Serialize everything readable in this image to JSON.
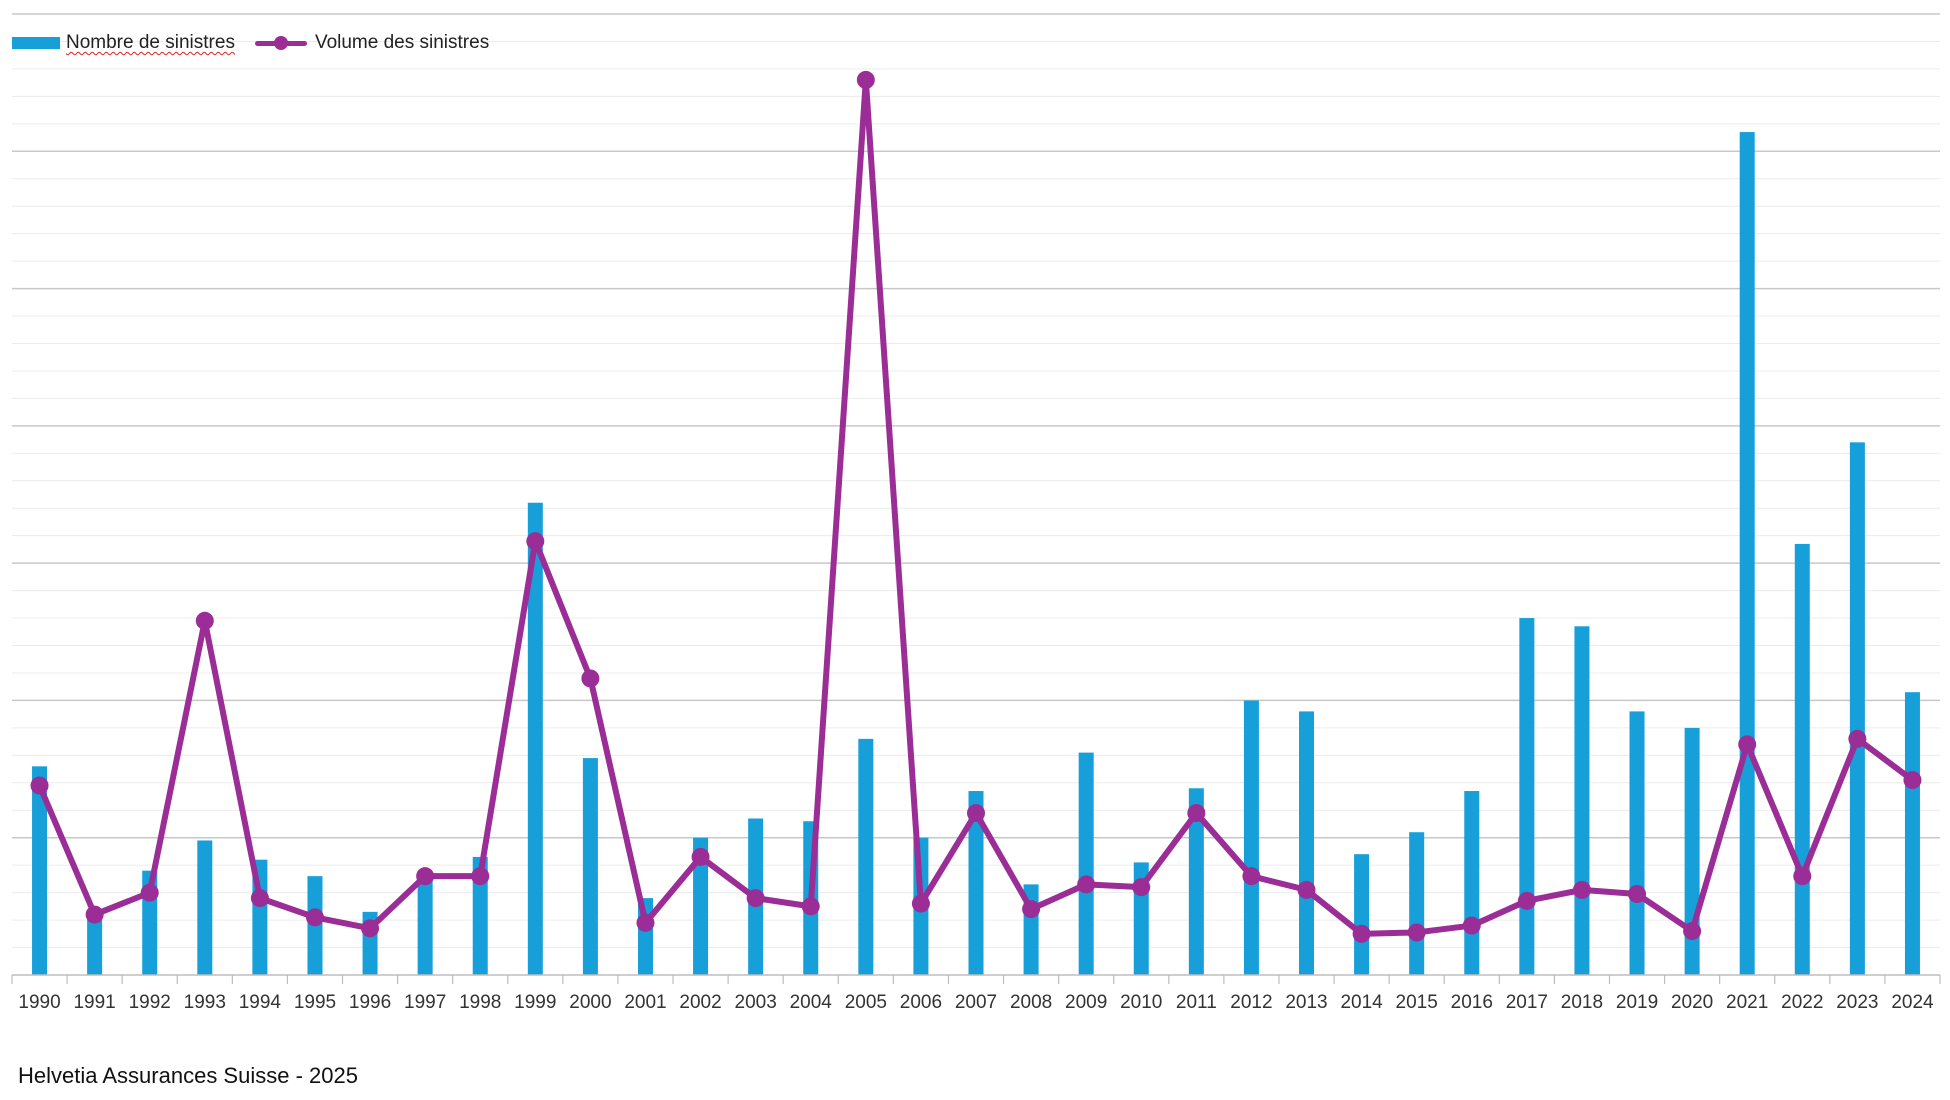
{
  "chart_data": {
    "type": "bar",
    "categories": [
      "1990",
      "1991",
      "1992",
      "1993",
      "1994",
      "1995",
      "1996",
      "1997",
      "1998",
      "1999",
      "2000",
      "2001",
      "2002",
      "2003",
      "2004",
      "2005",
      "2006",
      "2007",
      "2008",
      "2009",
      "2010",
      "2011",
      "2012",
      "2013",
      "2014",
      "2015",
      "2016",
      "2017",
      "2018",
      "2019",
      "2020",
      "2021",
      "2022",
      "2023",
      "2024"
    ],
    "series": [
      {
        "name": "Nombre de sinistres",
        "type": "bar",
        "color": "#169fd8",
        "values": [
          7.6,
          2.1,
          3.8,
          4.9,
          4.2,
          3.6,
          2.3,
          3.5,
          4.3,
          17.2,
          7.9,
          2.8,
          5.0,
          5.7,
          5.6,
          8.6,
          5.0,
          6.7,
          3.3,
          8.1,
          4.1,
          6.8,
          10.0,
          9.6,
          4.4,
          5.2,
          6.7,
          13.0,
          12.7,
          9.6,
          9.0,
          30.7,
          15.7,
          19.4,
          10.3
        ]
      },
      {
        "name": "Volume des sinistres",
        "type": "line",
        "color": "#9b2d96",
        "values": [
          6.9,
          2.2,
          3.0,
          12.9,
          2.8,
          2.1,
          1.7,
          3.6,
          3.6,
          15.8,
          10.8,
          1.9,
          4.3,
          2.8,
          2.5,
          32.6,
          2.6,
          5.9,
          2.4,
          3.3,
          3.2,
          5.9,
          3.6,
          3.1,
          1.5,
          1.55,
          1.8,
          2.7,
          3.1,
          2.95,
          1.6,
          8.4,
          3.6,
          8.6,
          7.1
        ]
      }
    ],
    "ylim": [
      0,
      35
    ],
    "grid": true,
    "legend": "top-left",
    "title": "",
    "xlabel": "",
    "ylabel": ""
  },
  "footer": "Helvetia Assurances Suisse - 2025"
}
